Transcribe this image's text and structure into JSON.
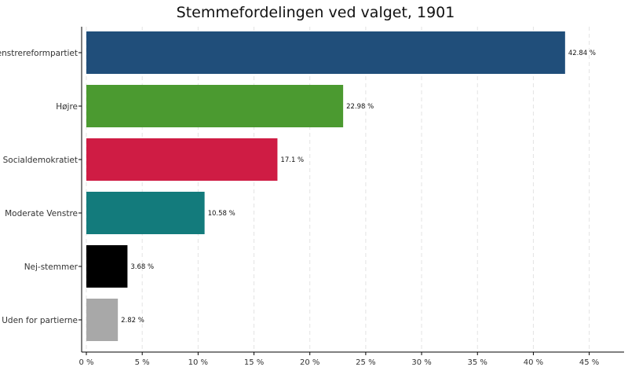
{
  "chart_data": {
    "type": "bar",
    "orientation": "horizontal",
    "title": "Stemmefordelingen ved valget, 1901",
    "xlabel": "",
    "ylabel": "",
    "categories": [
      "Venstrereformpartiet",
      "Højre",
      "Socialdemokratiet",
      "Moderate Venstre",
      "Nej-stemmer",
      "Uden for partierne"
    ],
    "values": [
      42.84,
      22.98,
      17.1,
      10.58,
      3.68,
      2.82
    ],
    "data_labels": [
      "42.84 %",
      "22.98 %",
      "17.1 %",
      "10.58 %",
      "3.68 %",
      "2.82 %"
    ],
    "colors": [
      "#204e7a",
      "#4b9a30",
      "#cf1c44",
      "#137b7c",
      "#000000",
      "#a8a8a8"
    ],
    "xlim": [
      0,
      45
    ],
    "x_ticks": [
      0,
      5,
      10,
      15,
      20,
      25,
      30,
      35,
      40,
      45
    ],
    "x_tick_labels": [
      "0 %",
      "5 %",
      "10 %",
      "15 %",
      "20 %",
      "25 %",
      "30 %",
      "35 %",
      "40 %",
      "45 %"
    ],
    "grid": "vertical dashed",
    "legend": "none"
  }
}
